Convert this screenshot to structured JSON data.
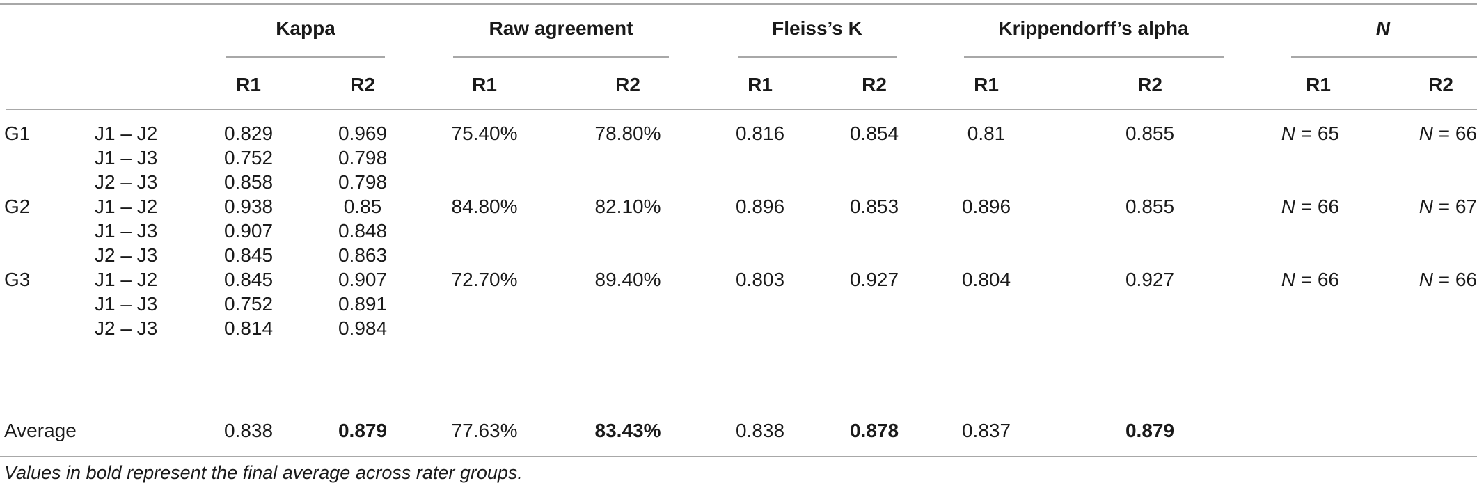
{
  "header": {
    "groups": [
      "Kappa",
      "Raw agreement",
      "Fleiss’s K",
      "Krippendorff’s alpha",
      "N"
    ],
    "subheaders": [
      "R1",
      "R2",
      "R1",
      "R2",
      "R1",
      "R2",
      "R1",
      "R2",
      "R1",
      "R2"
    ]
  },
  "rows": [
    {
      "group": "G1",
      "pair": "J1 – J2",
      "kappa_r1": "0.829",
      "kappa_r2": "0.969",
      "raw_r1": "75.40%",
      "raw_r2": "78.80%",
      "fleiss_r1": "0.816",
      "fleiss_r2": "0.854",
      "kripp_r1": "0.81",
      "kripp_r2": "0.855",
      "n_r1": "65",
      "n_r2": "66"
    },
    {
      "group": "",
      "pair": "J1 – J3",
      "kappa_r1": "0.752",
      "kappa_r2": "0.798"
    },
    {
      "group": "",
      "pair": "J2 – J3",
      "kappa_r1": "0.858",
      "kappa_r2": "0.798"
    },
    {
      "group": "G2",
      "pair": "J1 – J2",
      "kappa_r1": "0.938",
      "kappa_r2": "0.85",
      "raw_r1": "84.80%",
      "raw_r2": "82.10%",
      "fleiss_r1": "0.896",
      "fleiss_r2": "0.853",
      "kripp_r1": "0.896",
      "kripp_r2": "0.855",
      "n_r1": "66",
      "n_r2": "67"
    },
    {
      "group": "",
      "pair": "J1 – J3",
      "kappa_r1": "0.907",
      "kappa_r2": "0.848"
    },
    {
      "group": "",
      "pair": "J2 – J3",
      "kappa_r1": "0.845",
      "kappa_r2": "0.863"
    },
    {
      "group": "G3",
      "pair": "J1 – J2",
      "kappa_r1": "0.845",
      "kappa_r2": "0.907",
      "raw_r1": "72.70%",
      "raw_r2": "89.40%",
      "fleiss_r1": "0.803",
      "fleiss_r2": "0.927",
      "kripp_r1": "0.804",
      "kripp_r2": "0.927",
      "n_r1": "66",
      "n_r2": "66"
    },
    {
      "group": "",
      "pair": "J1 – J3",
      "kappa_r1": "0.752",
      "kappa_r2": "0.891"
    },
    {
      "group": "",
      "pair": "J2 – J3",
      "kappa_r1": "0.814",
      "kappa_r2": "0.984"
    }
  ],
  "average": {
    "label": "Average",
    "kappa_r1": "0.838",
    "kappa_r2": "0.879",
    "raw_r1": "77.63%",
    "raw_r2": "83.43%",
    "fleiss_r1": "0.838",
    "fleiss_r2": "0.878",
    "kripp_r1": "0.837",
    "kripp_r2": "0.879"
  },
  "footnote": "Values in bold represent the final average across rater groups."
}
